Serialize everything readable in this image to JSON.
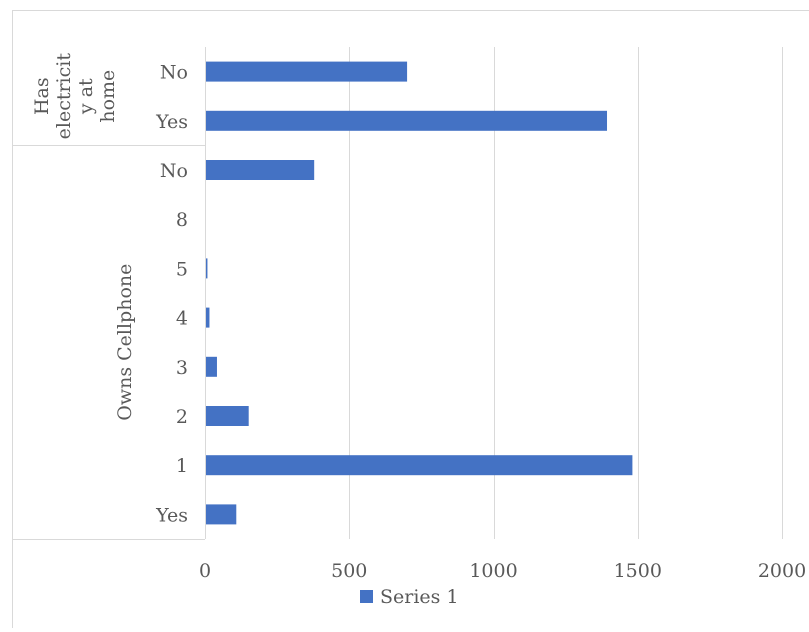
{
  "chart_data": {
    "type": "bar",
    "orientation": "horizontal",
    "title": "",
    "xlabel": "",
    "ylabel": "",
    "xlim": [
      0,
      2000
    ],
    "xticks": [
      0,
      500,
      1000,
      1500,
      2000
    ],
    "grid": true,
    "legend_position": "bottom",
    "bar_color": "#4472C4",
    "groups": [
      {
        "name": "Has electricit y at home",
        "label_lines": [
          "Has",
          "electricit",
          "y at",
          "home"
        ],
        "start": 0,
        "end": 2
      },
      {
        "name": "Owns Cellphone",
        "label_lines": [
          "Owns Cellphone"
        ],
        "start": 2,
        "end": 10
      }
    ],
    "categories": [
      "No",
      "Yes",
      "No",
      "8",
      "5",
      "4",
      "3",
      "2",
      "1",
      "Yes"
    ],
    "series": [
      {
        "name": "Series 1",
        "values": [
          697,
          1390,
          375,
          0,
          5,
          12,
          38,
          148,
          1478,
          105
        ]
      }
    ]
  }
}
